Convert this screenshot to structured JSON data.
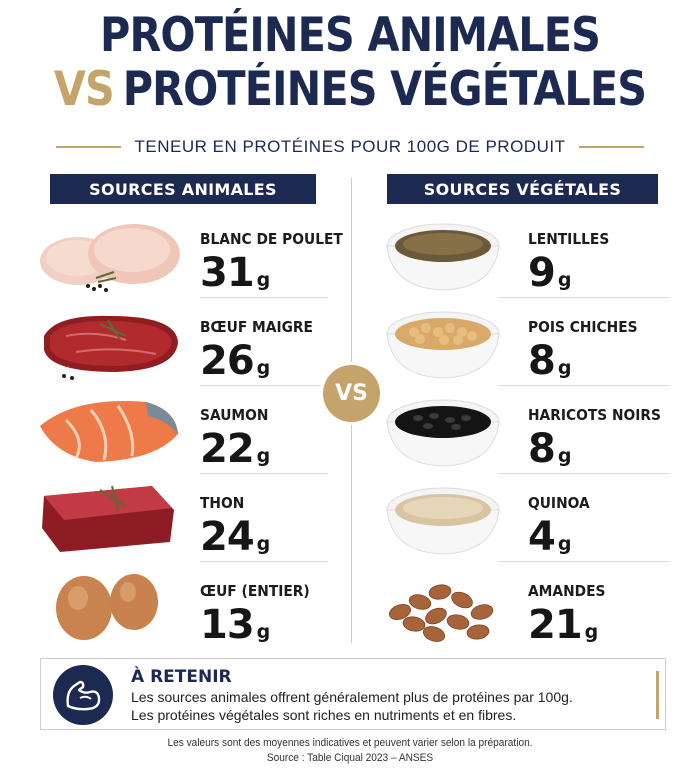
{
  "title": {
    "line1": "PROTÉINES ANIMALES",
    "vs": "VS",
    "line2": "PROTÉINES VÉGÉTALES"
  },
  "subtitle": "TENEUR EN PROTÉINES POUR 100G DE PRODUIT",
  "columns": {
    "animal_header": "SOURCES ANIMALES",
    "vegetal_header": "SOURCES VÉGÉTALES"
  },
  "vs_badge": "VS",
  "unit": "g",
  "animal": [
    {
      "label": "BLANC DE POULET",
      "value": "31"
    },
    {
      "label": "BŒUF MAIGRE",
      "value": "26"
    },
    {
      "label": "SAUMON",
      "value": "22"
    },
    {
      "label": "THON",
      "value": "24"
    },
    {
      "label": "ŒUF (ENTIER)",
      "value": "13"
    }
  ],
  "vegetal": [
    {
      "label": "LENTILLES",
      "value": "9"
    },
    {
      "label": "POIS CHICHES",
      "value": "8"
    },
    {
      "label": "HARICOTS NOIRS",
      "value": "8"
    },
    {
      "label": "QUINOA",
      "value": "4"
    },
    {
      "label": "AMANDES",
      "value": "21"
    }
  ],
  "retenir": {
    "title": "À RETENIR",
    "line1": "Les sources animales offrent généralement plus de protéines par 100g.",
    "line2": "Les protéines végétales sont riches en nutriments et en fibres."
  },
  "footnote": {
    "line1": "Les valeurs sont des moyennes indicatives et peuvent varier selon la préparation.",
    "line2": "Source : Table Ciqual 2023 – ANSES"
  },
  "colors": {
    "navy": "#1c2a52",
    "gold": "#c4a46a"
  }
}
